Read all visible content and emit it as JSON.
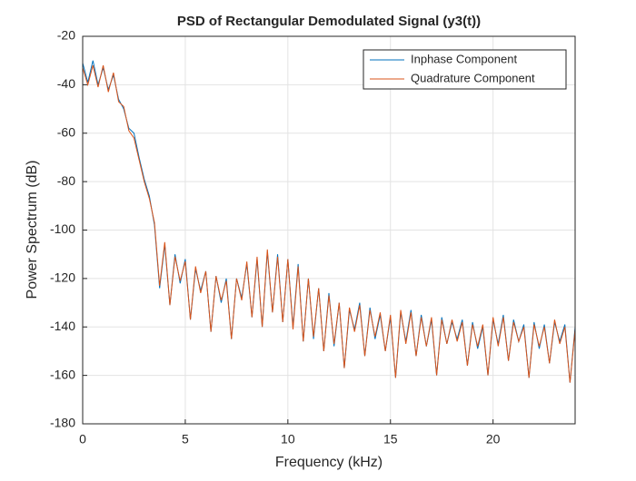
{
  "chart_data": {
    "type": "line",
    "title": "PSD of Rectangular Demodulated Signal (y3(t))",
    "x_label": "Frequency (kHz)",
    "y_label": "Power Spectrum (dB)",
    "x": [
      0,
      0.25,
      0.5,
      0.75,
      1,
      1.25,
      1.5,
      1.75,
      2,
      2.25,
      2.5,
      2.75,
      3,
      3.25,
      3.5,
      3.75,
      4,
      4.25,
      4.5,
      4.75,
      5,
      5.25,
      5.5,
      5.75,
      6,
      6.25,
      6.5,
      6.75,
      7,
      7.25,
      7.5,
      7.75,
      8,
      8.25,
      8.5,
      8.75,
      9,
      9.25,
      9.5,
      9.75,
      10,
      10.25,
      10.5,
      10.75,
      11,
      11.25,
      11.5,
      11.75,
      12,
      12.25,
      12.5,
      12.75,
      13,
      13.25,
      13.5,
      13.75,
      14,
      14.25,
      14.5,
      14.75,
      15,
      15.25,
      15.5,
      15.75,
      16,
      16.25,
      16.5,
      16.75,
      17,
      17.25,
      17.5,
      17.75,
      18,
      18.25,
      18.5,
      18.75,
      19,
      19.25,
      19.5,
      19.75,
      20,
      20.25,
      20.5,
      20.75,
      21,
      21.25,
      21.5,
      21.75,
      22,
      22.25,
      22.5,
      22.75,
      23,
      23.25,
      23.5,
      23.75,
      24
    ],
    "series": [
      {
        "name": "Inphase Component",
        "color": "#0072bd",
        "values": [
          -31,
          -39,
          -30,
          -40,
          -33,
          -42,
          -36,
          -46,
          -50,
          -58,
          -60,
          -70,
          -79,
          -86,
          -98,
          -124,
          -106,
          -131,
          -110,
          -122,
          -112,
          -137,
          -116,
          -125,
          -117,
          -142,
          -119,
          -130,
          -120,
          -145,
          -120,
          -128,
          -114,
          -136,
          -112,
          -140,
          -109,
          -134,
          -110,
          -138,
          -112,
          -140,
          -114,
          -146,
          -120,
          -145,
          -124,
          -150,
          -126,
          -148,
          -130,
          -157,
          -133,
          -141,
          -130,
          -152,
          -132,
          -145,
          -135,
          -150,
          -136,
          -161,
          -134,
          -146,
          -133,
          -152,
          -135,
          -148,
          -137,
          -160,
          -136,
          -147,
          -138,
          -145,
          -137,
          -156,
          -138,
          -149,
          -140,
          -160,
          -137,
          -147,
          -135,
          -154,
          -137,
          -146,
          -139,
          -161,
          -138,
          -149,
          -139,
          -155,
          -138,
          -146,
          -139,
          -163,
          -140
        ]
      },
      {
        "name": "Quadrature Component",
        "color": "#d95319",
        "values": [
          -33,
          -40,
          -32,
          -41,
          -32,
          -43,
          -35,
          -47,
          -49,
          -59,
          -62,
          -71,
          -80,
          -87,
          -97,
          -123,
          -105,
          -131,
          -111,
          -121,
          -113,
          -137,
          -115,
          -126,
          -117,
          -142,
          -119,
          -129,
          -121,
          -145,
          -120,
          -129,
          -113,
          -136,
          -111,
          -140,
          -108,
          -134,
          -111,
          -138,
          -112,
          -141,
          -115,
          -146,
          -120,
          -144,
          -124,
          -150,
          -127,
          -147,
          -130,
          -157,
          -132,
          -142,
          -131,
          -152,
          -133,
          -144,
          -134,
          -150,
          -135,
          -161,
          -133,
          -147,
          -134,
          -152,
          -136,
          -148,
          -136,
          -160,
          -137,
          -147,
          -137,
          -146,
          -138,
          -156,
          -139,
          -148,
          -139,
          -160,
          -136,
          -148,
          -136,
          -154,
          -138,
          -146,
          -140,
          -161,
          -139,
          -148,
          -140,
          -155,
          -137,
          -147,
          -140,
          -163,
          -141
        ]
      }
    ],
    "xlim": [
      0,
      24
    ],
    "ylim": [
      -180,
      -20
    ],
    "xticks": [
      0,
      5,
      10,
      15,
      20
    ],
    "yticks": [
      -180,
      -160,
      -140,
      -120,
      -100,
      -80,
      -60,
      -40,
      -20
    ],
    "grid": true,
    "legend": "northeast"
  }
}
